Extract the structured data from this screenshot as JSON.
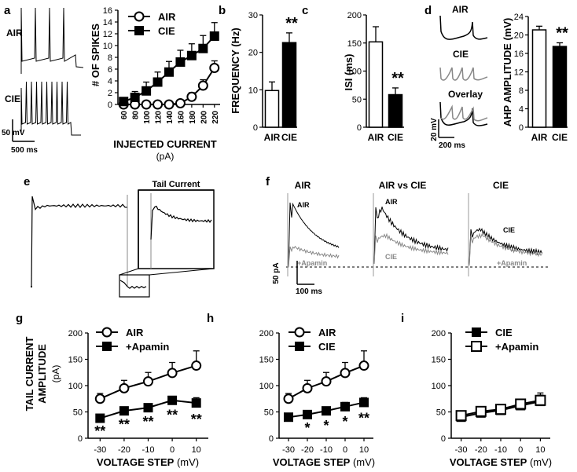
{
  "panel_letters": [
    "a",
    "b",
    "c",
    "d",
    "e",
    "f",
    "g",
    "h",
    "i"
  ],
  "labels": {
    "air": "AIR",
    "cie": "CIE",
    "overlay": "Overlay",
    "tail_current": "Tail Current",
    "air_vs_cie": "AIR vs CIE",
    "apamin_trace": "+Apamin",
    "scale_a_v": "50 mV",
    "scale_a_t": "500 ms",
    "scale_d_v": "20 mV",
    "scale_d_t": "200 ms",
    "scale_f_i": "50 pA",
    "scale_f_t": "100 ms"
  },
  "colors": {
    "air": "#ffffff",
    "cie": "#000000",
    "apamin_trace": "#888888"
  },
  "chart_data": [
    {
      "id": "a",
      "type": "line",
      "xlabel": "INJECTED CURRENT",
      "xunit": "(pA)",
      "ylabel": "# OF SPIKES",
      "categories": [
        "60",
        "80",
        "100",
        "120",
        "140",
        "160",
        "180",
        "200",
        "220"
      ],
      "ylim": [
        0,
        16
      ],
      "yticks": [
        "0",
        "2",
        "4",
        "6",
        "8",
        "10",
        "12",
        "14",
        "16"
      ],
      "legend": [
        "AIR",
        "CIE"
      ],
      "series": [
        {
          "name": "AIR",
          "marker": "open-circle",
          "values": [
            0,
            0,
            0,
            0,
            0,
            0.2,
            1.3,
            3.2,
            6.2
          ],
          "errors": [
            0,
            0,
            0,
            0,
            0,
            0.3,
            0.7,
            1.0,
            1.2
          ]
        },
        {
          "name": "CIE",
          "marker": "filled-square",
          "values": [
            0.5,
            1.2,
            2.3,
            3.8,
            5.5,
            7.2,
            8.3,
            9.5,
            11.6
          ],
          "errors": [
            0.5,
            1,
            1.5,
            1.7,
            1.8,
            2,
            2,
            2.2,
            2.3
          ]
        }
      ]
    },
    {
      "id": "b",
      "type": "bar",
      "ylabel": "FREQUENCY (Hz)",
      "categories": [
        "AIR",
        "CIE"
      ],
      "values": [
        9.8,
        22.6
      ],
      "errors": [
        2.3,
        2.6
      ],
      "ylim": [
        0,
        30
      ],
      "yticks": [
        "0",
        "10",
        "20",
        "30"
      ],
      "annotations": [
        "",
        "**"
      ]
    },
    {
      "id": "c",
      "type": "bar",
      "ylabel": "ISI (ms)",
      "categories": [
        "AIR",
        "CIE"
      ],
      "values": [
        152,
        58
      ],
      "errors": [
        27,
        12
      ],
      "ylim": [
        0,
        200
      ],
      "yticks": [
        "0",
        "50",
        "100",
        "150",
        "200"
      ],
      "annotations": [
        "",
        "**"
      ]
    },
    {
      "id": "d",
      "type": "bar",
      "ylabel": "AHP AMPLITUDE (mV)",
      "categories": [
        "AIR",
        "CIE"
      ],
      "values": [
        21.1,
        17.5
      ],
      "errors": [
        0.8,
        0.8
      ],
      "ylim": [
        0,
        24
      ],
      "yticks": [
        "0",
        "4",
        "8",
        "12",
        "16",
        "20",
        "24"
      ],
      "annotations": [
        "",
        "**"
      ]
    },
    {
      "id": "g",
      "type": "line",
      "ylabel_lines": [
        "TAIL CURRENT",
        "AMPLITUDE",
        "(pA)"
      ],
      "xlabel": "VOLTAGE STEP",
      "xunit": "(mV)",
      "categories": [
        "-30",
        "-20",
        "-10",
        "0",
        "10"
      ],
      "ylim": [
        0,
        200
      ],
      "yticks": [
        "0",
        "50",
        "100",
        "150",
        "200"
      ],
      "legend": [
        "AIR",
        "+Apamin"
      ],
      "series": [
        {
          "name": "AIR",
          "marker": "open-circle",
          "values": [
            75,
            95,
            108,
            124,
            138
          ],
          "errors": [
            10,
            15,
            17,
            20,
            28
          ]
        },
        {
          "name": "+Apamin",
          "marker": "filled-square",
          "values": [
            38,
            52,
            58,
            72,
            67
          ],
          "errors": [
            4,
            5,
            6,
            7,
            10
          ]
        }
      ],
      "annotations": [
        "**",
        "**",
        "**",
        "**",
        "**"
      ]
    },
    {
      "id": "h",
      "type": "line",
      "xlabel": "VOLTAGE STEP",
      "xunit": "(mV)",
      "categories": [
        "-30",
        "-20",
        "-10",
        "0",
        "10"
      ],
      "ylim": [
        0,
        200
      ],
      "yticks": [
        "0",
        "50",
        "100",
        "150",
        "200"
      ],
      "legend": [
        "AIR",
        "CIE"
      ],
      "series": [
        {
          "name": "AIR",
          "marker": "open-circle",
          "values": [
            75,
            95,
            108,
            124,
            138
          ],
          "errors": [
            10,
            15,
            17,
            20,
            28
          ]
        },
        {
          "name": "CIE",
          "marker": "filled-square",
          "values": [
            40,
            45,
            52,
            60,
            68
          ],
          "errors": [
            4,
            5,
            7,
            8,
            9
          ]
        }
      ],
      "annotations": [
        "",
        "*",
        "*",
        "*",
        "**"
      ]
    },
    {
      "id": "i",
      "type": "line",
      "xlabel": "VOLTAGE STEP",
      "xunit": "(mV)",
      "categories": [
        "-30",
        "-20",
        "-10",
        "0",
        "10"
      ],
      "ylim": [
        0,
        200
      ],
      "yticks": [
        "0",
        "50",
        "100",
        "150",
        "200"
      ],
      "legend": [
        "CIE",
        "+Apamin"
      ],
      "series": [
        {
          "name": "CIE",
          "marker": "filled-square",
          "values": [
            40,
            48,
            53,
            62,
            70
          ],
          "errors": [
            4,
            6,
            8,
            10,
            12
          ]
        },
        {
          "name": "+Apamin",
          "marker": "open-square",
          "values": [
            43,
            51,
            55,
            65,
            72
          ],
          "errors": [
            4,
            5,
            7,
            9,
            14
          ]
        }
      ],
      "annotations": [
        "",
        "",
        "",
        "",
        ""
      ]
    }
  ]
}
